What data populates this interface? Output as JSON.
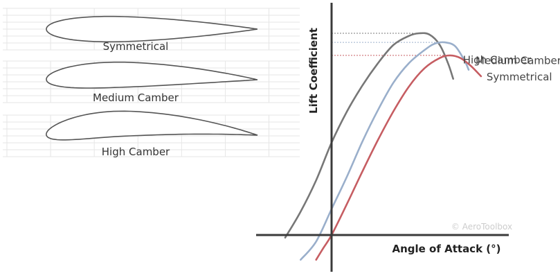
{
  "airfoils": [
    {
      "id": "symmetrical",
      "label": "Symmetrical",
      "camber": 0.0,
      "thickness": 0.12
    },
    {
      "id": "medium",
      "label": "Medium Camber",
      "camber": 0.024,
      "thickness": 0.12
    },
    {
      "id": "high",
      "label": "High Camber",
      "camber": 0.055,
      "thickness": 0.12
    }
  ],
  "chart_data": {
    "type": "line",
    "title": "",
    "xlabel": "Angle of Attack (°)",
    "ylabel": "Lift Coefficient",
    "xlim": [
      -5,
      14
    ],
    "ylim": [
      -0.5,
      1.6
    ],
    "grid": false,
    "legend": "none",
    "watermark": "© AeroToolbox",
    "x_axis_at_y": 0,
    "y_axis_at_x": 0,
    "series": [
      {
        "name": "High Camber",
        "color": "#777777",
        "peak_guide": true,
        "x": [
          -4.5,
          -3,
          -1.5,
          0,
          1.5,
          3,
          4.5,
          6,
          7.5,
          8.5,
          9.5,
          10.5,
          11.3,
          11.8
        ],
        "y": [
          -0.02,
          0.18,
          0.42,
          0.71,
          0.95,
          1.15,
          1.32,
          1.46,
          1.53,
          1.55,
          1.54,
          1.46,
          1.32,
          1.2
        ]
      },
      {
        "name": "Medium Camber",
        "color": "#9aafcb",
        "peak_guide": true,
        "x": [
          -3,
          -1.5,
          0,
          1.5,
          3,
          4.5,
          6,
          7.5,
          9,
          10,
          11,
          12,
          12.9,
          13.3
        ],
        "y": [
          -0.19,
          -0.05,
          0.2,
          0.45,
          0.72,
          0.96,
          1.17,
          1.32,
          1.42,
          1.47,
          1.48,
          1.45,
          1.34,
          1.27
        ]
      },
      {
        "name": "Symmetrical",
        "color": "#c65d62",
        "peak_guide": true,
        "x": [
          -1.5,
          -0.8,
          0,
          1.5,
          3,
          4.5,
          6,
          7.5,
          9,
          10.5,
          11.5,
          12.5,
          13.5,
          14.5
        ],
        "y": [
          -0.19,
          -0.1,
          0.0,
          0.24,
          0.49,
          0.73,
          0.95,
          1.14,
          1.28,
          1.36,
          1.38,
          1.36,
          1.3,
          1.22
        ]
      }
    ]
  }
}
